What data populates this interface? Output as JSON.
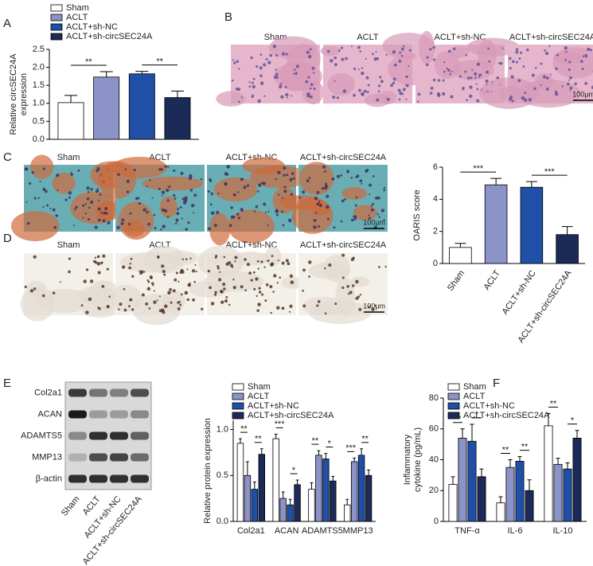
{
  "panel_labels": [
    "A",
    "B",
    "C",
    "D",
    "E",
    "F"
  ],
  "histology": {
    "B": {
      "columns": [
        "Sham",
        "ACLT",
        "ACLT+sh-NC",
        "ACLT+sh-circSEC24A"
      ],
      "scale_bar": "100μm"
    },
    "C": {
      "columns": [
        "Sham",
        "ACLT",
        "ACLT+sh-NC",
        "ACLT+sh-circSEC24A"
      ],
      "scale_bar": "100μm"
    },
    "D": {
      "columns": [
        "Sham",
        "ACLT",
        "ACLT+sh-NC",
        "ACLT+sh-circSEC24A"
      ],
      "scale_bar": "100μm"
    }
  },
  "blot": {
    "rows": [
      "Col2a1",
      "ACAN",
      "ADAMTS5",
      "MMP13",
      "β-actin"
    ],
    "lanes": [
      "Sham",
      "ACLT",
      "ACLT+sh-NC",
      "ACLT+sh-circSEC24A"
    ]
  },
  "chart_data": [
    {
      "type": "bar",
      "y_label": [
        "Relative circSEC24A",
        "expression"
      ],
      "categories": [
        null
      ],
      "legend": "top",
      "series": [
        {
          "name": "Sham",
          "color": "#ffffff",
          "values": [
            1.02
          ],
          "errors": [
            0.2
          ]
        },
        {
          "name": "ACLT",
          "color": "#8b93c9",
          "values": [
            1.73
          ],
          "errors": [
            0.15
          ]
        },
        {
          "name": "ACLT+sh-NC",
          "color": "#1f4fa6",
          "values": [
            1.82
          ],
          "errors": [
            0.07
          ]
        },
        {
          "name": "ACLT+sh-circSEC24A",
          "color": "#1c2a58",
          "values": [
            1.16
          ],
          "errors": [
            0.18
          ]
        }
      ],
      "annotations": [
        [
          "**",
          "**"
        ]
      ],
      "ylim": [
        0,
        2.5
      ],
      "yticks": [
        {
          "value": 0,
          "label": "0.0"
        },
        0.5,
        {
          "value": 1,
          "label": "1.0"
        },
        1.5,
        {
          "value": 2,
          "label": "2.0"
        },
        2.5
      ]
    },
    {
      "type": "bar",
      "y_label": [
        "OARIS score"
      ],
      "categories": [
        "Sham",
        "ACLT",
        "ACLT+sh-NC",
        "ACLT+sh-circSEC24A"
      ],
      "values": [
        1.0,
        4.9,
        4.75,
        1.8
      ],
      "errors": [
        0.25,
        0.4,
        0.35,
        0.5
      ],
      "colors": [
        "#ffffff",
        "#8b93c9",
        "#1f4fa6",
        "#1c2a58"
      ],
      "x_label_rotation": -55,
      "annotations": [
        "***",
        "***"
      ],
      "ylim": [
        0,
        6
      ],
      "yticks": [
        0,
        2,
        4,
        6
      ]
    },
    {
      "type": "bar",
      "y_label": [
        "Relative protein expression"
      ],
      "legend": "top",
      "categories": [
        "Col2a1",
        "ACAN",
        "ADAMTS5",
        "MMP13"
      ],
      "series": [
        {
          "name": "Sham",
          "color": "#ffffff",
          "values": [
            0.85,
            0.9,
            0.35,
            0.18
          ],
          "errors": [
            0.05,
            0.05,
            0.07,
            0.06
          ]
        },
        {
          "name": "ACLT",
          "color": "#8b93c9",
          "values": [
            0.5,
            0.25,
            0.72,
            0.65
          ],
          "errors": [
            0.15,
            0.07,
            0.05,
            0.04
          ]
        },
        {
          "name": "ACLT+sh-NC",
          "color": "#1f4fa6",
          "values": [
            0.35,
            0.18,
            0.68,
            0.72
          ],
          "errors": [
            0.08,
            0.06,
            0.06,
            0.07
          ]
        },
        {
          "name": "ACLT+sh-circSEC24A",
          "color": "#1c2a58",
          "values": [
            0.73,
            0.4,
            0.44,
            0.5
          ],
          "errors": [
            0.06,
            0.05,
            0.05,
            0.06
          ]
        }
      ],
      "annotations": [
        [
          "**",
          "**"
        ],
        [
          "***",
          "*"
        ],
        [
          "**",
          "*"
        ],
        [
          "***",
          "**"
        ]
      ],
      "ylim": [
        0,
        1.1
      ],
      "yticks": [
        {
          "value": 0,
          "label": "0.0"
        },
        0.5,
        {
          "value": 1,
          "label": "1.0"
        }
      ]
    },
    {
      "type": "bar",
      "y_label": [
        "Inflammatory",
        "cytokine (pg/mL)"
      ],
      "legend": "top",
      "categories": [
        "TNF-α",
        "IL-6",
        "IL-10"
      ],
      "series": [
        {
          "name": "Sham",
          "color": "#ffffff",
          "values": [
            24,
            12,
            62
          ],
          "errors": [
            5,
            4,
            8
          ]
        },
        {
          "name": "ACLT",
          "color": "#8b93c9",
          "values": [
            54,
            35,
            37
          ],
          "errors": [
            6,
            5,
            4
          ]
        },
        {
          "name": "ACLT+sh-NC",
          "color": "#1f4fa6",
          "values": [
            52,
            39,
            34
          ],
          "errors": [
            11,
            3,
            4
          ]
        },
        {
          "name": "ACLT+sh-circSEC24A",
          "color": "#1c2a58",
          "values": [
            29,
            20,
            54
          ],
          "errors": [
            5,
            7,
            5
          ]
        }
      ],
      "annotations": [
        [
          "**",
          "*"
        ],
        [
          "**",
          "**"
        ],
        [
          "**",
          "*"
        ]
      ],
      "ylim": [
        0,
        80
      ],
      "yticks": [
        0,
        20,
        40,
        60,
        80
      ]
    }
  ]
}
